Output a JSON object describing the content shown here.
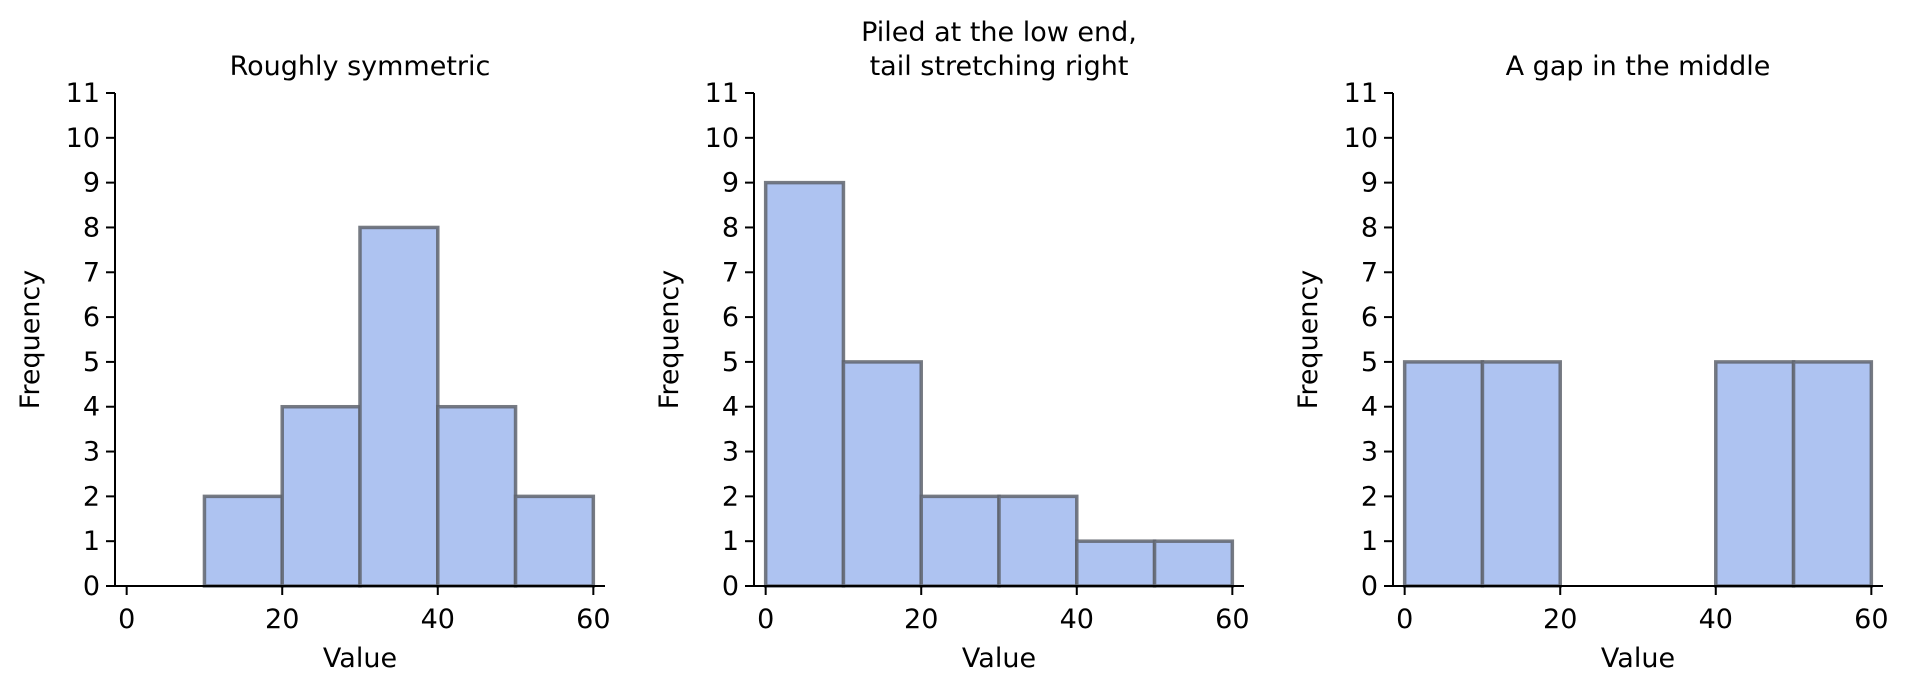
{
  "colors": {
    "bar_fill": "#aec3f1",
    "bar_edge": "#5f646d",
    "axis": "#000000",
    "text": "#000000"
  },
  "chart_data": [
    {
      "type": "bar",
      "title": "Roughly symmetric",
      "xlabel": "Value",
      "ylabel": "Frequency",
      "bin_edges": [
        0,
        10,
        20,
        30,
        40,
        50,
        60
      ],
      "values": [
        0,
        2,
        4,
        8,
        4,
        2
      ],
      "xticks": [
        0,
        20,
        40,
        60
      ],
      "yticks": [
        0,
        1,
        2,
        3,
        4,
        5,
        6,
        7,
        8,
        9,
        10,
        11
      ],
      "xlim": [
        -1.5,
        61.5
      ],
      "ylim": [
        0,
        11
      ],
      "grid": false,
      "legend": false
    },
    {
      "type": "bar",
      "title": "Piled at the low end,\ntail stretching right",
      "xlabel": "Value",
      "ylabel": "Frequency",
      "bin_edges": [
        0,
        10,
        20,
        30,
        40,
        50,
        60
      ],
      "values": [
        9,
        5,
        2,
        2,
        1,
        1
      ],
      "xticks": [
        0,
        20,
        40,
        60
      ],
      "yticks": [
        0,
        1,
        2,
        3,
        4,
        5,
        6,
        7,
        8,
        9,
        10,
        11
      ],
      "xlim": [
        -1.5,
        61.5
      ],
      "ylim": [
        0,
        11
      ],
      "grid": false,
      "legend": false
    },
    {
      "type": "bar",
      "title": "A gap in the middle",
      "xlabel": "Value",
      "ylabel": "Frequency",
      "bin_edges": [
        0,
        10,
        20,
        30,
        40,
        50,
        60
      ],
      "values": [
        5,
        5,
        0,
        0,
        5,
        5
      ],
      "xticks": [
        0,
        20,
        40,
        60
      ],
      "yticks": [
        0,
        1,
        2,
        3,
        4,
        5,
        6,
        7,
        8,
        9,
        10,
        11
      ],
      "xlim": [
        -1.5,
        61.5
      ],
      "ylim": [
        0,
        11
      ],
      "grid": false,
      "legend": false
    }
  ]
}
